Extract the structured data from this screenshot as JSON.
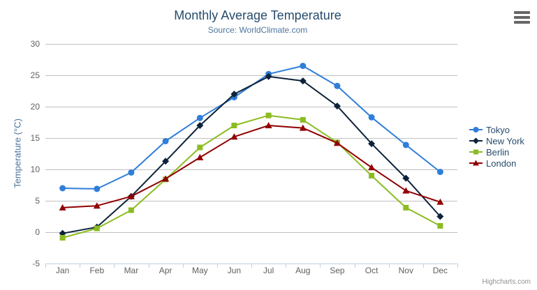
{
  "chart_data": {
    "type": "line",
    "title": "Monthly Average Temperature",
    "subtitle": "Source: WorldClimate.com",
    "xlabel": "",
    "ylabel": "Temperature (°C)",
    "categories": [
      "Jan",
      "Feb",
      "Mar",
      "Apr",
      "May",
      "Jun",
      "Jul",
      "Aug",
      "Sep",
      "Oct",
      "Nov",
      "Dec"
    ],
    "y_ticks": [
      -5,
      0,
      5,
      10,
      15,
      20,
      25,
      30
    ],
    "ylim": [
      -5,
      30
    ],
    "grid": "horizontal-only",
    "legend_position": "right-middle",
    "series": [
      {
        "name": "Tokyo",
        "color": "#2f7ed8",
        "marker": "circle",
        "values": [
          7.0,
          6.9,
          9.5,
          14.5,
          18.2,
          21.5,
          25.2,
          26.5,
          23.3,
          18.3,
          13.9,
          9.6
        ]
      },
      {
        "name": "New York",
        "color": "#0d233a",
        "marker": "diamond",
        "values": [
          -0.2,
          0.8,
          5.7,
          11.3,
          17.0,
          22.0,
          24.8,
          24.1,
          20.1,
          14.1,
          8.6,
          2.5
        ]
      },
      {
        "name": "Berlin",
        "color": "#8bbc21",
        "marker": "square",
        "values": [
          -0.9,
          0.6,
          3.5,
          8.4,
          13.5,
          17.0,
          18.6,
          17.9,
          14.3,
          9.0,
          3.9,
          1.0
        ]
      },
      {
        "name": "London",
        "color": "#910000",
        "marker": "triangle",
        "values": [
          3.9,
          4.2,
          5.7,
          8.5,
          11.9,
          15.2,
          17.0,
          16.6,
          14.2,
          10.3,
          6.6,
          4.8
        ]
      }
    ]
  },
  "credits": "Highcharts.com",
  "icons": {
    "context_menu": "hamburger-icon"
  },
  "colors": {
    "title": "#274b6d",
    "subtitle": "#4d759e",
    "axis_title": "#4d759e",
    "tick_label": "#606060",
    "grid_line": "#c0c0c0",
    "axis_line": "#c0d0e0",
    "legend_text": "#274b6d",
    "credits": "#909090",
    "context_button": "#666666",
    "background": "#ffffff"
  }
}
